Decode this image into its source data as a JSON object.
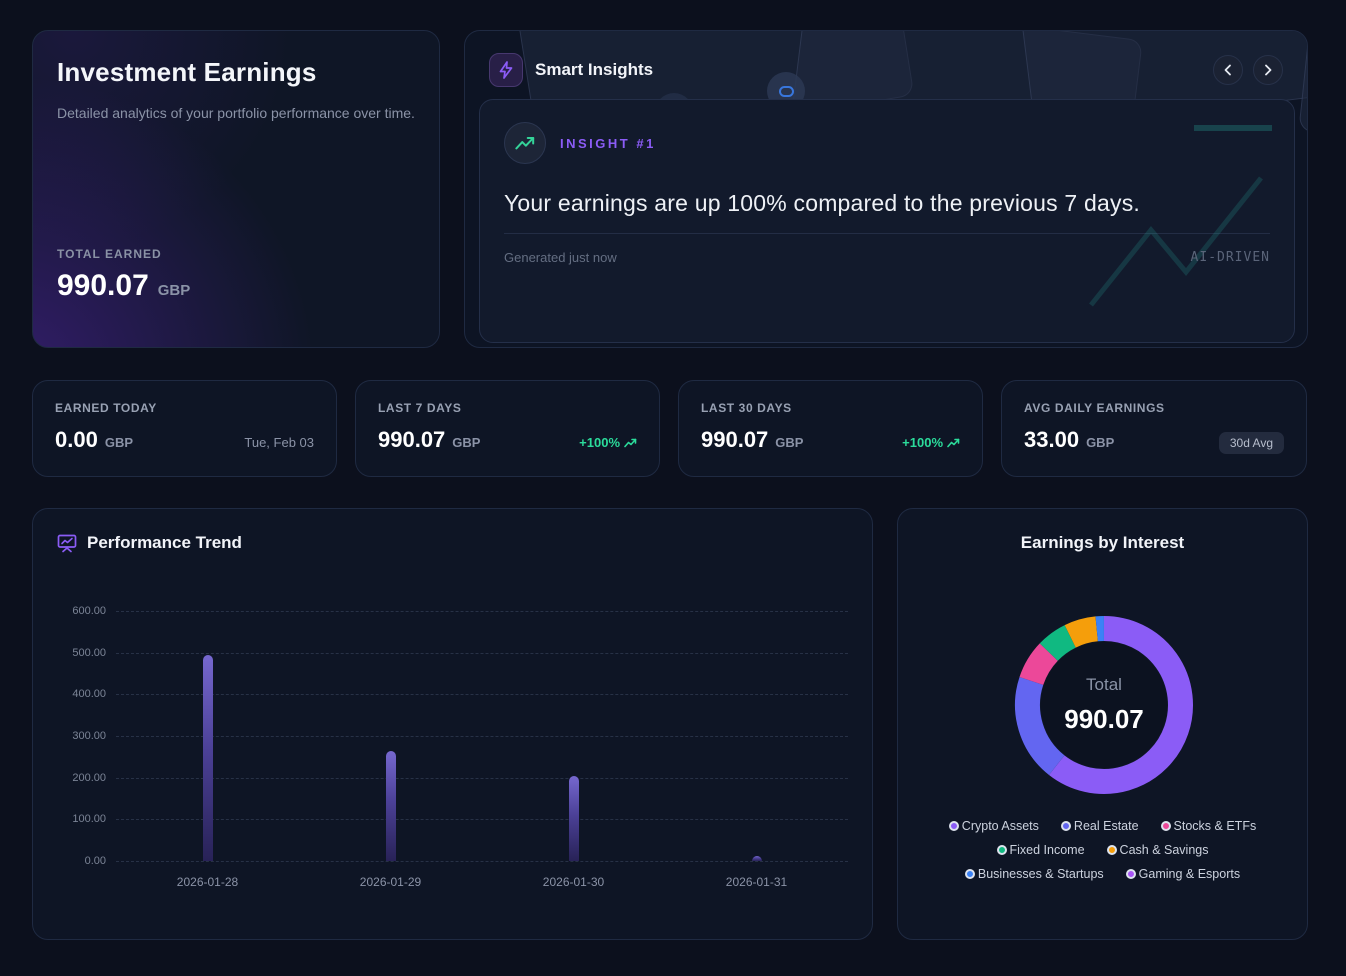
{
  "overview_card": {
    "title": "Investment Earnings",
    "description": "Detailed analytics of your portfolio performance over time.",
    "total_label": "TOTAL EARNED",
    "total_value": "990.07",
    "currency": "GBP"
  },
  "insights": {
    "title": "Smart Insights",
    "badge_label": "INSIGHT #1",
    "message": "Your earnings are up 100% compared to the previous 7 days.",
    "generated": "Generated just now",
    "tag": "AI-DRIVEN"
  },
  "stats": [
    {
      "label": "EARNED TODAY",
      "value": "0.00",
      "currency": "GBP",
      "meta": "Tue, Feb 03"
    },
    {
      "label": "LAST 7 DAYS",
      "value": "990.07",
      "currency": "GBP",
      "meta": "+100%"
    },
    {
      "label": "LAST 30 DAYS",
      "value": "990.07",
      "currency": "GBP",
      "meta": "+100%"
    },
    {
      "label": "AVG DAILY EARNINGS",
      "value": "33.00",
      "currency": "GBP",
      "meta": "30d Avg"
    }
  ],
  "colors": {
    "accent_purple": "#8b5cf6",
    "positive_green": "#2bdb9b",
    "bar_purple": "#6a5ec4"
  },
  "chart_data": [
    {
      "type": "bar",
      "title": "Performance Trend",
      "categories": [
        "2026-01-28",
        "2026-01-29",
        "2026-01-30",
        "2026-01-31"
      ],
      "values": [
        495,
        265,
        203,
        12
      ],
      "ylim": [
        0,
        600
      ],
      "yticks": [
        "600.00",
        "500.00",
        "400.00",
        "300.00",
        "200.00",
        "100.00",
        "0.00"
      ],
      "grid": true,
      "legend": false
    },
    {
      "type": "pie",
      "title": "Earnings by Interest",
      "center_label": "Total",
      "center_value": "990.07",
      "total": 990.07,
      "legend_position": "bottom",
      "series": [
        {
          "name": "Crypto Assets",
          "value": 600,
          "color": "#8b5cf6"
        },
        {
          "name": "Real Estate",
          "value": 193,
          "color": "#6366f1"
        },
        {
          "name": "Stocks & ETFs",
          "value": 70,
          "color": "#ec4899"
        },
        {
          "name": "Fixed Income",
          "value": 55,
          "color": "#10b981"
        },
        {
          "name": "Cash & Savings",
          "value": 57,
          "color": "#f59e0b"
        },
        {
          "name": "Businesses & Startups",
          "value": 15,
          "color": "#3b82f6"
        },
        {
          "name": "Gaming & Esports",
          "value": 0.07,
          "color": "#a855f7"
        }
      ]
    }
  ]
}
